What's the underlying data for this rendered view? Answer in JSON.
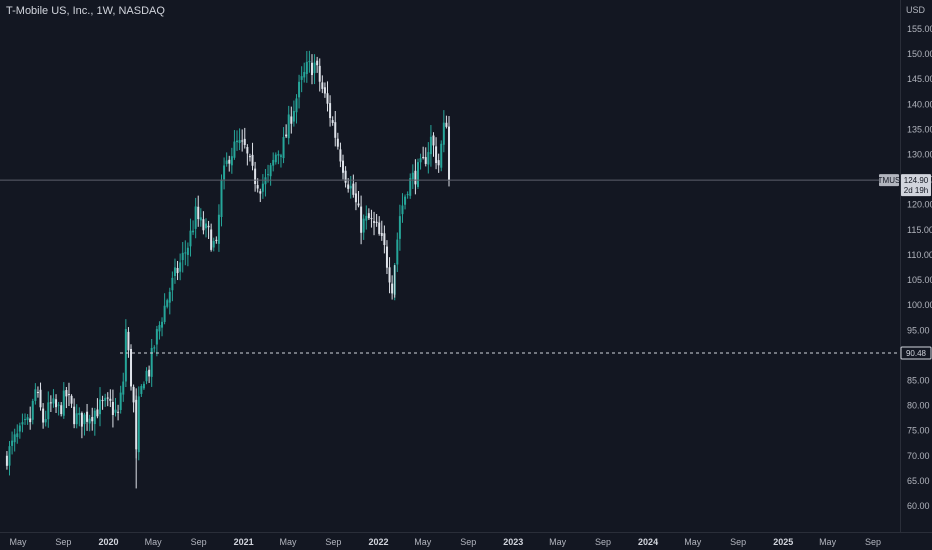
{
  "header": {
    "title": "T-Mobile US, Inc., 1W, NASDAQ",
    "currency": "USD"
  },
  "price_tag": {
    "symbol": "TMUS",
    "price": "124.90",
    "countdown": "2d 19h"
  },
  "level_tag": {
    "price": "90.48"
  },
  "colors": {
    "background": "#131722",
    "up": "#26a69a",
    "down": "#dfe3ea",
    "axis_text": "#b2b5be",
    "price_line": "#5d606b",
    "level_line": "#d1d4dc"
  },
  "chart_data": {
    "type": "candlestick",
    "ylim": [
      56,
      160
    ],
    "y_ticks": [
      "60.00",
      "65.00",
      "70.00",
      "75.00",
      "80.00",
      "85.00",
      "90.00",
      "95.00",
      "100.00",
      "105.00",
      "110.00",
      "115.00",
      "120.00",
      "125.00",
      "130.00",
      "135.00",
      "140.00",
      "145.00",
      "150.00",
      "155.00"
    ],
    "x_ticks": [
      {
        "label": "May",
        "date": "2019-05-01"
      },
      {
        "label": "Sep",
        "date": "2019-09-01"
      },
      {
        "label": "2020",
        "date": "2020-01-01"
      },
      {
        "label": "May",
        "date": "2020-05-01"
      },
      {
        "label": "Sep",
        "date": "2020-09-01"
      },
      {
        "label": "2021",
        "date": "2021-01-01"
      },
      {
        "label": "May",
        "date": "2021-05-01"
      },
      {
        "label": "Sep",
        "date": "2021-09-01"
      },
      {
        "label": "2022",
        "date": "2022-01-01"
      },
      {
        "label": "May",
        "date": "2022-05-01"
      },
      {
        "label": "Sep",
        "date": "2022-09-01"
      },
      {
        "label": "2023",
        "date": "2023-01-01"
      },
      {
        "label": "May",
        "date": "2023-05-01"
      },
      {
        "label": "Sep",
        "date": "2023-09-01"
      },
      {
        "label": "2024",
        "date": "2024-01-01"
      },
      {
        "label": "May",
        "date": "2024-05-01"
      },
      {
        "label": "Sep",
        "date": "2024-09-01"
      },
      {
        "label": "2025",
        "date": "2025-01-01"
      },
      {
        "label": "May",
        "date": "2025-05-01"
      },
      {
        "label": "Sep",
        "date": "2025-09-01"
      }
    ],
    "last_price": 124.9,
    "horizontal_level": 90.48,
    "close_anchors": [
      [
        "2019-04-01",
        70
      ],
      [
        "2019-04-22",
        73
      ],
      [
        "2019-05-13",
        75
      ],
      [
        "2019-06-03",
        77
      ],
      [
        "2019-06-17",
        83
      ],
      [
        "2019-07-08",
        77
      ],
      [
        "2019-07-29",
        80
      ],
      [
        "2019-08-19",
        79
      ],
      [
        "2019-09-09",
        82
      ],
      [
        "2019-09-30",
        78
      ],
      [
        "2019-10-14",
        77
      ],
      [
        "2019-11-04",
        78
      ],
      [
        "2019-11-25",
        79
      ],
      [
        "2019-12-16",
        80
      ],
      [
        "2020-01-06",
        80
      ],
      [
        "2020-01-27",
        78
      ],
      [
        "2020-02-10",
        85
      ],
      [
        "2020-02-17",
        95
      ],
      [
        "2020-02-24",
        90
      ],
      [
        "2020-03-09",
        80
      ],
      [
        "2020-03-16",
        70
      ],
      [
        "2020-03-23",
        80
      ],
      [
        "2020-04-06",
        86
      ],
      [
        "2020-04-20",
        87
      ],
      [
        "2020-05-04",
        92
      ],
      [
        "2020-05-25",
        98
      ],
      [
        "2020-06-15",
        103
      ],
      [
        "2020-07-06",
        107
      ],
      [
        "2020-08-03",
        112
      ],
      [
        "2020-08-24",
        118
      ],
      [
        "2020-09-07",
        116
      ],
      [
        "2020-09-28",
        114
      ],
      [
        "2020-10-19",
        111
      ],
      [
        "2020-11-02",
        124
      ],
      [
        "2020-11-23",
        130
      ],
      [
        "2020-12-14",
        132
      ],
      [
        "2021-01-04",
        131
      ],
      [
        "2021-01-25",
        126
      ],
      [
        "2021-02-15",
        124
      ],
      [
        "2021-03-08",
        125
      ],
      [
        "2021-03-29",
        130
      ],
      [
        "2021-04-19",
        132
      ],
      [
        "2021-05-10",
        138
      ],
      [
        "2021-05-31",
        143
      ],
      [
        "2021-06-21",
        147
      ],
      [
        "2021-07-12",
        148
      ],
      [
        "2021-08-02",
        143
      ],
      [
        "2021-08-23",
        138
      ],
      [
        "2021-09-13",
        132
      ],
      [
        "2021-10-04",
        126
      ],
      [
        "2021-10-25",
        122
      ],
      [
        "2021-11-15",
        116
      ],
      [
        "2021-12-06",
        117
      ],
      [
        "2021-12-27",
        115
      ],
      [
        "2022-01-17",
        111
      ],
      [
        "2022-02-07",
        104
      ],
      [
        "2022-02-28",
        118
      ],
      [
        "2022-03-21",
        124
      ],
      [
        "2022-04-11",
        126
      ],
      [
        "2022-05-02",
        128
      ],
      [
        "2022-05-23",
        133
      ],
      [
        "2022-06-13",
        128
      ],
      [
        "2022-06-27",
        135
      ],
      [
        "2022-07-04",
        137
      ],
      [
        "2022-07-11",
        124.9
      ]
    ]
  }
}
